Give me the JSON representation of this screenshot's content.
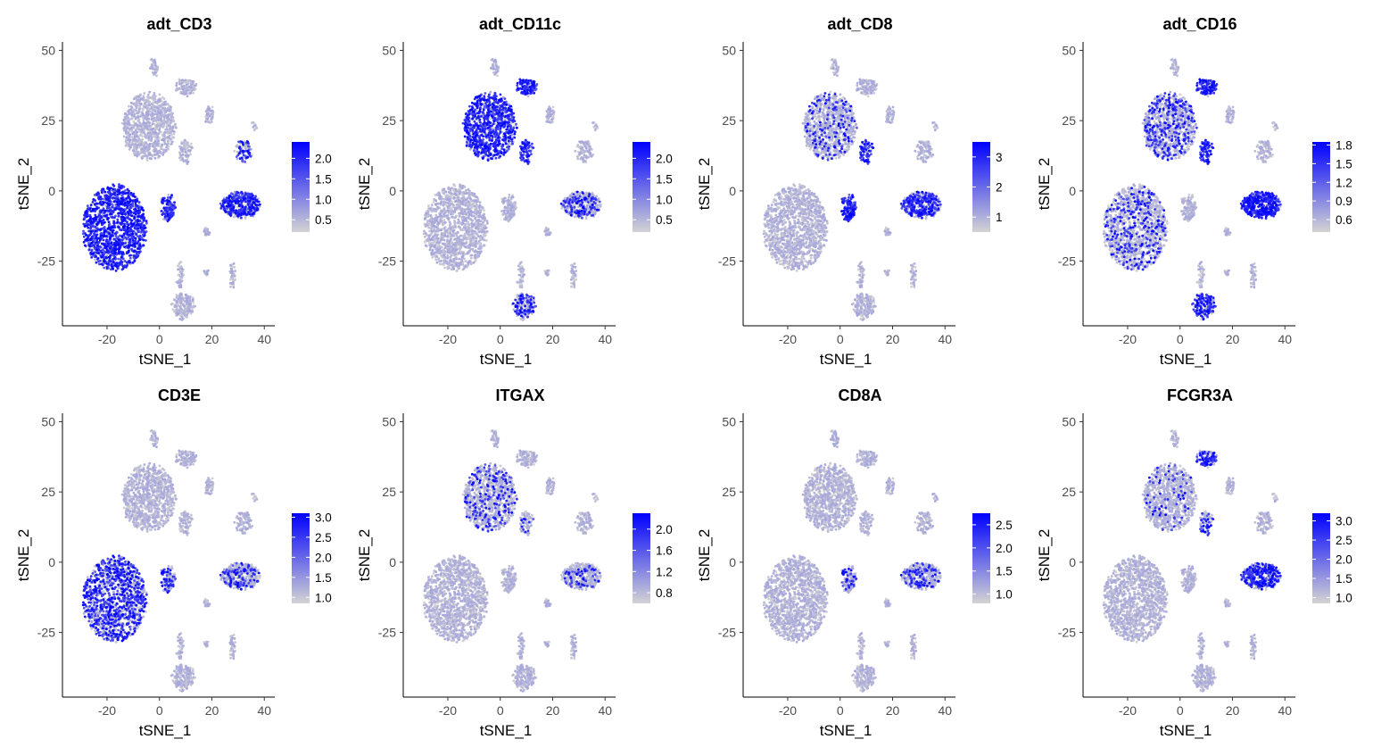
{
  "chart_data": [
    {
      "type": "scatter",
      "title": "adt_CD3",
      "xlabel": "tSNE_1",
      "ylabel": "tSNE_2",
      "xticks": [
        -20,
        0,
        20,
        40
      ],
      "yticks": [
        50,
        25,
        0,
        -25
      ],
      "legend_ticks": [
        0.5,
        1.0,
        1.5,
        2.0
      ],
      "legend_labels": [
        "0.5",
        "1.0",
        "1.5",
        "2.0"
      ],
      "legend_range": [
        0.2,
        2.4
      ],
      "legend_placement": "right",
      "high_clusters": {
        "main": 0.9,
        "right": 0.7,
        "cd8": 0.75,
        "small": 0.5
      }
    },
    {
      "type": "scatter",
      "title": "adt_CD11c",
      "xlabel": "tSNE_1",
      "ylabel": "tSNE_2",
      "xticks": [
        -20,
        0,
        20,
        40
      ],
      "yticks": [
        50,
        25,
        0,
        -25
      ],
      "legend_ticks": [
        0.5,
        1.0,
        1.5,
        2.0
      ],
      "legend_labels": [
        "0.5",
        "1.0",
        "1.5",
        "2.0"
      ],
      "legend_range": [
        0.2,
        2.4
      ],
      "legend_placement": "right",
      "high_clusters": {
        "top": 0.8,
        "top_arm": 0.95,
        "arm": 0.9,
        "nk": 0.3,
        "bottom": 0.4
      }
    },
    {
      "type": "scatter",
      "title": "adt_CD8",
      "xlabel": "tSNE_1",
      "ylabel": "tSNE_2",
      "xticks": [
        -20,
        0,
        20,
        40
      ],
      "yticks": [
        50,
        25,
        0,
        -25
      ],
      "legend_ticks": [
        1,
        2,
        3
      ],
      "legend_labels": [
        "1",
        "2",
        "3"
      ],
      "legend_range": [
        0.5,
        3.5
      ],
      "legend_placement": "right",
      "high_clusters": {
        "cd8": 1.0,
        "nk": 0.6,
        "arm": 0.7,
        "top": 0.15
      }
    },
    {
      "type": "scatter",
      "title": "adt_CD16",
      "xlabel": "tSNE_1",
      "ylabel": "tSNE_2",
      "xticks": [
        -20,
        0,
        20,
        40
      ],
      "yticks": [
        50,
        25,
        0,
        -25
      ],
      "legend_ticks": [
        0.6,
        0.9,
        1.2,
        1.5,
        1.8
      ],
      "legend_labels": [
        "0.6",
        "0.9",
        "1.2",
        "1.5",
        "1.8"
      ],
      "legend_range": [
        0.4,
        1.85
      ],
      "legend_placement": "right",
      "high_clusters": {
        "nk": 0.95,
        "top_arm": 0.95,
        "arm": 0.9,
        "bottom": 0.6,
        "top": 0.25,
        "main": 0.2
      }
    },
    {
      "type": "scatter",
      "title": "CD3E",
      "xlabel": "tSNE_1",
      "ylabel": "tSNE_2",
      "xticks": [
        -20,
        0,
        20,
        40
      ],
      "yticks": [
        50,
        25,
        0,
        -25
      ],
      "legend_ticks": [
        1.0,
        1.5,
        2.0,
        2.5,
        3.0
      ],
      "legend_labels": [
        "1.0",
        "1.5",
        "2.0",
        "2.5",
        "3.0"
      ],
      "legend_range": [
        0.85,
        3.1
      ],
      "legend_placement": "right",
      "high_clusters": {
        "main": 0.55,
        "cd8": 0.45,
        "right": 0.25
      }
    },
    {
      "type": "scatter",
      "title": "ITGAX",
      "xlabel": "tSNE_1",
      "ylabel": "tSNE_2",
      "xticks": [
        -20,
        0,
        20,
        40
      ],
      "yticks": [
        50,
        25,
        0,
        -25
      ],
      "legend_ticks": [
        0.8,
        1.2,
        1.6,
        2.0
      ],
      "legend_labels": [
        "0.8",
        "1.2",
        "1.6",
        "2.0"
      ],
      "legend_range": [
        0.6,
        2.3
      ],
      "legend_placement": "right",
      "high_clusters": {
        "top": 0.18,
        "nk": 0.12,
        "arm": 0.15
      }
    },
    {
      "type": "scatter",
      "title": "CD8A",
      "xlabel": "tSNE_1",
      "ylabel": "tSNE_2",
      "xticks": [
        -20,
        0,
        20,
        40
      ],
      "yticks": [
        50,
        25,
        0,
        -25
      ],
      "legend_ticks": [
        1.0,
        1.5,
        2.0,
        2.5
      ],
      "legend_labels": [
        "1.0",
        "1.5",
        "2.0",
        "2.5"
      ],
      "legend_range": [
        0.8,
        2.75
      ],
      "legend_placement": "right",
      "high_clusters": {
        "cd8": 0.35,
        "nk": 0.2
      }
    },
    {
      "type": "scatter",
      "title": "FCGR3A",
      "xlabel": "tSNE_1",
      "ylabel": "tSNE_2",
      "xticks": [
        -20,
        0,
        20,
        40
      ],
      "yticks": [
        50,
        25,
        0,
        -25
      ],
      "legend_ticks": [
        1.0,
        1.5,
        2.0,
        2.5,
        3.0
      ],
      "legend_labels": [
        "1.0",
        "1.5",
        "2.0",
        "2.5",
        "3.0"
      ],
      "legend_range": [
        0.85,
        3.2
      ],
      "legend_placement": "right",
      "high_clusters": {
        "nk": 0.6,
        "top_arm": 0.7,
        "arm": 0.35,
        "top": 0.08
      }
    }
  ],
  "axes": {
    "xlim": [
      -37,
      44
    ],
    "ylim": [
      -48,
      53
    ]
  },
  "colors": {
    "low": "#d3d3d3",
    "high": "#0000ff",
    "axis": "#000000",
    "tick_text": "#4d4d4d"
  }
}
